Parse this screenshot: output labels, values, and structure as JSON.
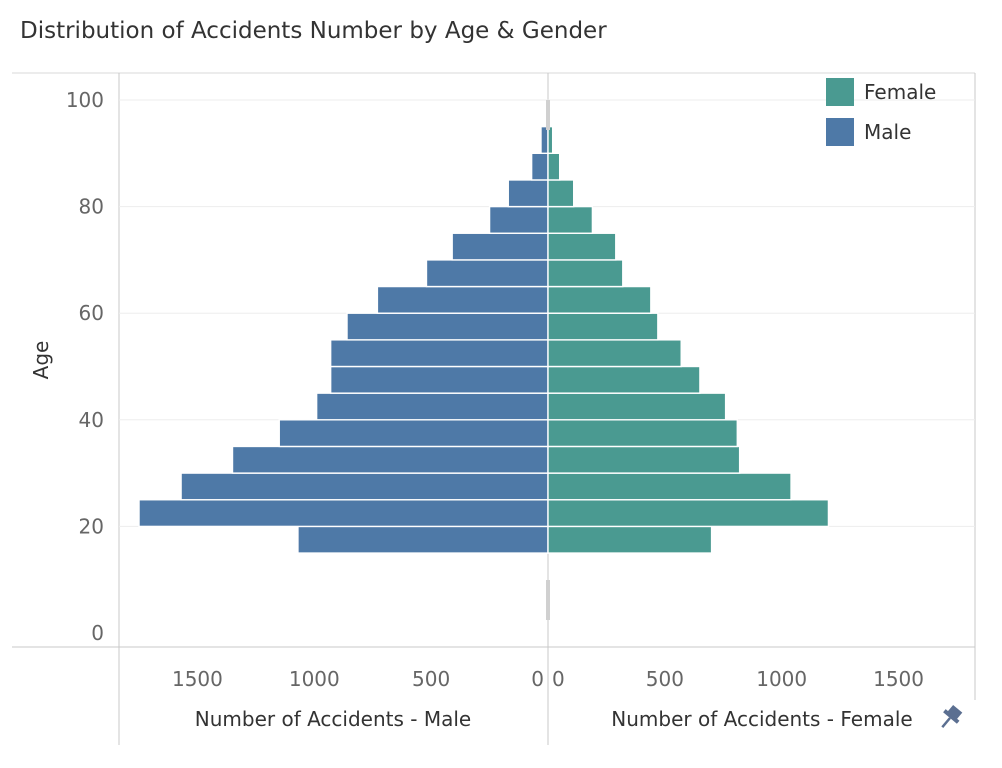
{
  "title": "Distribution of Accidents Number by Age & Gender",
  "chart_data": {
    "type": "bar",
    "orientation": "horizontal",
    "layout": "population-pyramid",
    "title": "Distribution of Accidents Number by Age & Gender",
    "ylabel": "Age",
    "xlabel_left": "Number of Accidents - Male",
    "xlabel_right": "Number of Accidents - Female",
    "age_ticks": [
      0,
      20,
      40,
      60,
      80,
      100
    ],
    "age_range": [
      0,
      100
    ],
    "x_ticks": [
      0,
      500,
      1000,
      1500
    ],
    "x_tick_labels": [
      "0",
      "500",
      "1000",
      "1500"
    ],
    "xlim": [
      0,
      1800
    ],
    "grid": true,
    "legend_position": "top-right",
    "age_bins": [
      15,
      20,
      25,
      30,
      35,
      40,
      45,
      50,
      55,
      60,
      65,
      70,
      75,
      80,
      85,
      90
    ],
    "series": [
      {
        "name": "Female",
        "color": "#4a9a91",
        "values": [
          700,
          1200,
          1040,
          820,
          810,
          760,
          650,
          570,
          470,
          440,
          320,
          290,
          190,
          110,
          50,
          20
        ]
      },
      {
        "name": "Male",
        "color": "#4e79a7",
        "values": [
          1070,
          1750,
          1570,
          1350,
          1150,
          990,
          930,
          930,
          860,
          730,
          520,
          410,
          250,
          170,
          70,
          30
        ]
      }
    ],
    "pin_icon": "pin-icon"
  }
}
